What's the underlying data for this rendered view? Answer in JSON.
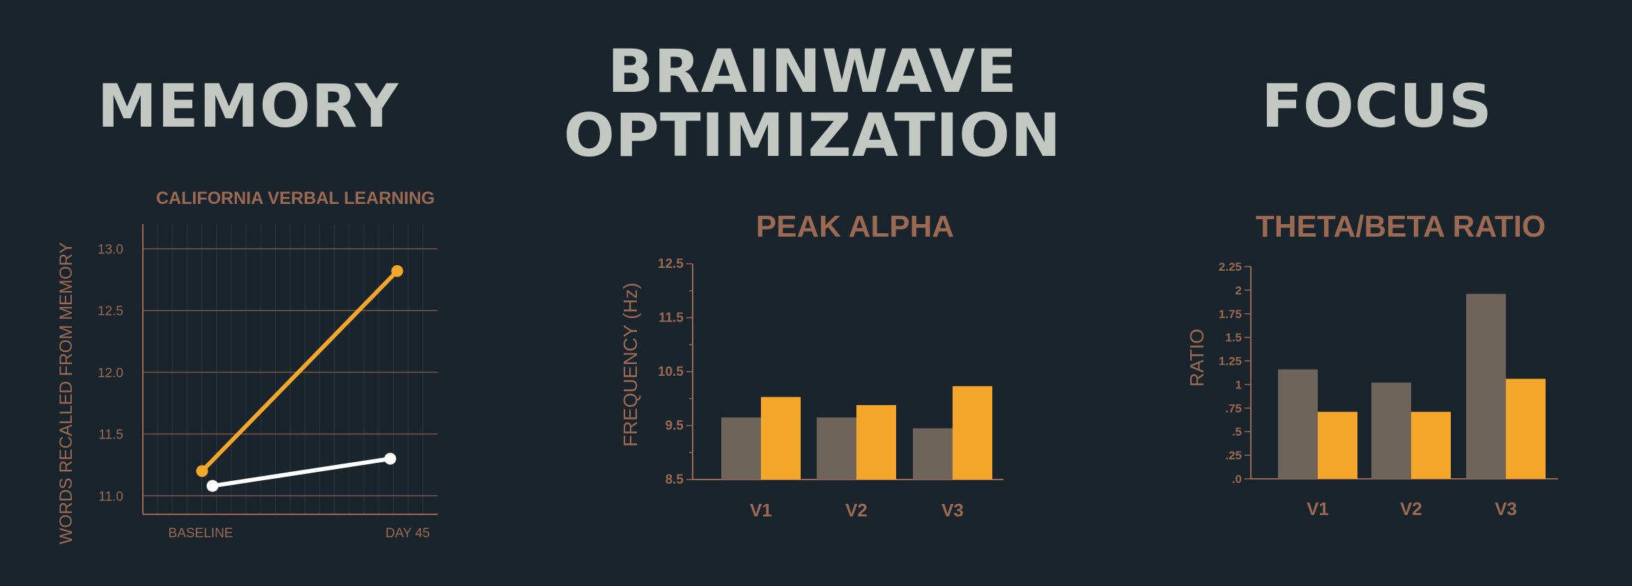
{
  "colors": {
    "background": "#1a242c",
    "heading": "#c3c8c2",
    "accent": "#9c6a52",
    "gray_bar": "#6f645a",
    "orange": "#f4a72a",
    "white_line": "#ffffff"
  },
  "sections": {
    "memory": {
      "heading": "MEMORY"
    },
    "brainwave": {
      "heading_line1": "BRAINWAVE",
      "heading_line2": "OPTIMIZATION"
    },
    "focus": {
      "heading": "FOCUS"
    }
  },
  "chart_data": [
    {
      "type": "line",
      "title": "CALIFORNIA VERBAL LEARNING",
      "xlabel": "",
      "ylabel": "WORDS RECALLED FROM MEMORY",
      "x": [
        "BASELINE",
        "DAY 45"
      ],
      "ylim": [
        10.85,
        13.2
      ],
      "yticks": [
        "11.0",
        "11.5",
        "12.0",
        "12.5",
        "13.0"
      ],
      "ytick_values": [
        11.0,
        11.5,
        12.0,
        12.5,
        13.0
      ],
      "grid": true,
      "series": [
        {
          "color": "#f4a72a",
          "values": [
            11.2,
            12.82
          ]
        },
        {
          "color": "#ffffff",
          "values": [
            11.08,
            11.3
          ]
        }
      ]
    },
    {
      "type": "bar",
      "title": "PEAK ALPHA",
      "xlabel": "",
      "ylabel": "FREQUENCY (Hz)",
      "categories": [
        "V1",
        "V2",
        "V3"
      ],
      "ylim": [
        8.5,
        12.5
      ],
      "yticks": [
        "8.5",
        "9.5",
        "10.5",
        "11.5",
        "12.5"
      ],
      "ytick_values": [
        8.5,
        9.5,
        10.5,
        11.5,
        12.5
      ],
      "grid": false,
      "series": [
        {
          "color": "#6f645a",
          "values": [
            9.65,
            9.65,
            9.45
          ]
        },
        {
          "color": "#f4a72a",
          "values": [
            10.03,
            9.88,
            10.23
          ]
        }
      ]
    },
    {
      "type": "bar",
      "title": "THETA/BETA RATIO",
      "xlabel": "",
      "ylabel": "RATIO",
      "categories": [
        "V1",
        "V2",
        "V3"
      ],
      "ylim": [
        0,
        2.25
      ],
      "yticks": [
        ".0",
        ".25",
        ".5",
        ".75",
        "1",
        "1.25",
        "1.5",
        "1.75",
        "2",
        "2.25"
      ],
      "ytick_values": [
        0,
        0.25,
        0.5,
        0.75,
        1,
        1.25,
        1.5,
        1.75,
        2,
        2.25
      ],
      "grid": false,
      "series": [
        {
          "color": "#6f645a",
          "values": [
            1.16,
            1.02,
            1.96
          ]
        },
        {
          "color": "#f4a72a",
          "values": [
            0.71,
            0.71,
            1.06
          ]
        }
      ]
    }
  ]
}
